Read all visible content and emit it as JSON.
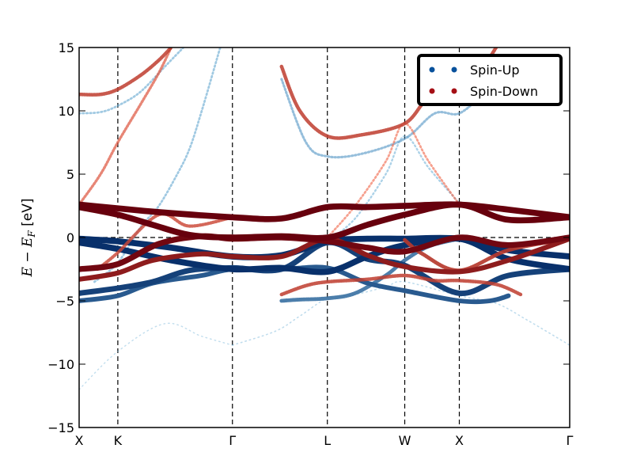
{
  "chart_data": {
    "type": "line",
    "ylabel": "E − E_F [eV]",
    "ylabel_parts": {
      "e": "E",
      "minus": " − ",
      "ef": "E",
      "sub": "F",
      "unit": " [eV]"
    },
    "ylim": [
      -15,
      15
    ],
    "yticks": [
      -15,
      -10,
      -5,
      0,
      5,
      10,
      15
    ],
    "ytick_labels": [
      "−15",
      "−10",
      "−5",
      "0",
      "5",
      "10",
      "15"
    ],
    "xlim": [
      0,
      8
    ],
    "kpoints": [
      {
        "label": "X",
        "x": 0
      },
      {
        "label": "K",
        "x": 0.631
      },
      {
        "label": "Γ",
        "x": 2.5
      },
      {
        "label": "L",
        "x": 4.048
      },
      {
        "label": "W",
        "x": 5.31
      },
      {
        "label": "X",
        "x": 6.2
      },
      {
        "label": "Γ",
        "x": 8.0
      }
    ],
    "fermi_level": 0,
    "legend": {
      "placement": "top-right",
      "entries": [
        {
          "name": "Spin-Up",
          "color": "#08519c"
        },
        {
          "name": "Spin-Down",
          "color": "#a50f15"
        }
      ]
    },
    "series": [
      {
        "name": "Spin-Up",
        "color_heavy": "#08306b",
        "color_light": "#6baed6",
        "bands": [
          {
            "points": [
              [
                0,
                -0.1
              ],
              [
                0.63,
                -0.3
              ],
              [
                1.5,
                -0.8
              ],
              [
                2.5,
                -1.5
              ],
              [
                3.3,
                -1.4
              ],
              [
                4.05,
                -0.3
              ],
              [
                4.7,
                -0.1
              ],
              [
                5.31,
                -0.1
              ],
              [
                6.2,
                -0.1
              ],
              [
                7.0,
                -1.0
              ],
              [
                8.0,
                -1.5
              ]
            ],
            "weight": 0.95
          },
          {
            "points": [
              [
                0,
                -0.4
              ],
              [
                0.63,
                -0.9
              ],
              [
                1.5,
                -1.8
              ],
              [
                2.5,
                -2.5
              ],
              [
                3.3,
                -2.4
              ],
              [
                4.05,
                -2.7
              ],
              [
                4.7,
                -1.5
              ],
              [
                5.31,
                -0.6
              ],
              [
                6.2,
                -0.1
              ],
              [
                7.0,
                -1.7
              ],
              [
                8.0,
                -2.5
              ]
            ],
            "weight": 0.95
          },
          {
            "points": [
              [
                0,
                -4.4
              ],
              [
                0.63,
                -4.0
              ],
              [
                1.2,
                -3.5
              ],
              [
                1.8,
                -2.6
              ],
              [
                2.5,
                -2.4
              ],
              [
                3.3,
                -2.5
              ],
              [
                4.05,
                -0.4
              ],
              [
                4.7,
                -1.7
              ],
              [
                5.31,
                -2.2
              ],
              [
                6.2,
                -4.4
              ],
              [
                7.0,
                -3.0
              ],
              [
                8.0,
                -2.5
              ]
            ],
            "weight": 0.85
          },
          {
            "points": [
              [
                0,
                -5.0
              ],
              [
                0.63,
                -4.6
              ],
              [
                1.2,
                -3.6
              ],
              [
                2.0,
                -3.0
              ],
              [
                2.5,
                -2.5
              ],
              [
                3.3,
                -2.5
              ],
              [
                4.05,
                -2.4
              ],
              [
                4.7,
                -3.6
              ],
              [
                5.31,
                -4.2
              ],
              [
                6.2,
                -5.0
              ],
              [
                6.7,
                -5.0
              ],
              [
                7.0,
                -4.6
              ]
            ],
            "weight": 0.7
          },
          {
            "points": [
              [
                0.25,
                -3.5
              ],
              [
                0.63,
                -2.0
              ],
              [
                1.0,
                0.8
              ],
              [
                1.3,
                2.5
              ],
              [
                1.6,
                5.0
              ],
              [
                1.8,
                7.0
              ],
              [
                2.0,
                10.0
              ],
              [
                2.3,
                15.0
              ]
            ],
            "weight": 0.25
          },
          {
            "points": [
              [
                0,
                9.8
              ],
              [
                0.35,
                9.9
              ],
              [
                0.63,
                10.4
              ],
              [
                1.0,
                11.5
              ],
              [
                1.4,
                13.5
              ],
              [
                1.7,
                15.0
              ]
            ],
            "weight": 0.25
          },
          {
            "points": [
              [
                3.3,
                -5.0
              ],
              [
                3.6,
                -4.9
              ],
              [
                4.05,
                -4.8
              ],
              [
                4.5,
                -4.4
              ],
              [
                5.0,
                -3.0
              ],
              [
                5.31,
                -1.8
              ],
              [
                5.7,
                -0.7
              ],
              [
                6.2,
                -0.1
              ]
            ],
            "weight": 0.55
          },
          {
            "points": [
              [
                4.05,
                -0.3
              ],
              [
                4.5,
                1.5
              ],
              [
                5.0,
                5.0
              ],
              [
                5.31,
                8.0
              ],
              [
                5.7,
                5.5
              ],
              [
                6.2,
                2.7
              ]
            ],
            "weight": 0.2
          },
          {
            "points": [
              [
                3.3,
                12.5
              ],
              [
                3.7,
                7.5
              ],
              [
                4.05,
                6.4
              ],
              [
                4.6,
                6.6
              ],
              [
                5.31,
                7.8
              ],
              [
                5.8,
                9.8
              ],
              [
                6.2,
                9.8
              ],
              [
                6.6,
                11.5
              ],
              [
                6.9,
                13.5
              ]
            ],
            "weight": 0.3
          },
          {
            "points": [
              [
                2.5,
                -8.5
              ],
              [
                3.2,
                -7.4
              ],
              [
                3.6,
                -6.2
              ],
              [
                4.05,
                -4.8
              ],
              [
                4.5,
                -4.5
              ],
              [
                5.0,
                -3.9
              ],
              [
                5.31,
                -3.5
              ],
              [
                6.2,
                -4.6
              ],
              [
                6.8,
                -5.2
              ],
              [
                7.3,
                -6.5
              ],
              [
                8.0,
                -8.5
              ]
            ],
            "weight": 0.08
          },
          {
            "points": [
              [
                0,
                -12.0
              ],
              [
                0.63,
                -9.0
              ],
              [
                1.4,
                -6.8
              ],
              [
                2.0,
                -7.8
              ],
              [
                2.5,
                -8.5
              ]
            ],
            "weight": 0.06
          }
        ]
      },
      {
        "name": "Spin-Down",
        "color_heavy": "#67000d",
        "color_light": "#fb6a4a",
        "bands": [
          {
            "points": [
              [
                0,
                2.6
              ],
              [
                0.63,
                2.3
              ],
              [
                1.3,
                2.0
              ],
              [
                2.5,
                1.6
              ],
              [
                3.3,
                1.5
              ],
              [
                4.05,
                2.4
              ],
              [
                4.7,
                2.4
              ],
              [
                5.31,
                2.5
              ],
              [
                6.2,
                2.6
              ],
              [
                7.0,
                2.2
              ],
              [
                8.0,
                1.6
              ]
            ],
            "weight": 0.95
          },
          {
            "points": [
              [
                0,
                2.4
              ],
              [
                0.63,
                1.8
              ],
              [
                1.2,
                1.0
              ],
              [
                1.8,
                0.2
              ],
              [
                2.5,
                0.0
              ],
              [
                3.3,
                0.1
              ],
              [
                4.05,
                0.0
              ],
              [
                4.7,
                1.0
              ],
              [
                5.31,
                1.8
              ],
              [
                6.2,
                2.6
              ],
              [
                7.0,
                1.4
              ],
              [
                8.0,
                1.6
              ]
            ],
            "weight": 0.95
          },
          {
            "points": [
              [
                0,
                -2.5
              ],
              [
                0.63,
                -2.1
              ],
              [
                1.3,
                -0.5
              ],
              [
                2.0,
                0.1
              ],
              [
                2.5,
                -0.1
              ],
              [
                3.3,
                0.0
              ],
              [
                4.05,
                -0.3
              ],
              [
                4.7,
                -0.8
              ],
              [
                5.31,
                -1.1
              ],
              [
                6.2,
                0.0
              ],
              [
                7.0,
                -0.6
              ],
              [
                8.0,
                0.0
              ]
            ],
            "weight": 0.9
          },
          {
            "points": [
              [
                0,
                -3.3
              ],
              [
                0.63,
                -2.8
              ],
              [
                1.2,
                -1.8
              ],
              [
                2.0,
                -1.3
              ],
              [
                2.5,
                -1.5
              ],
              [
                3.3,
                -1.5
              ],
              [
                4.05,
                -0.1
              ],
              [
                4.7,
                -1.4
              ],
              [
                5.31,
                -2.3
              ],
              [
                6.2,
                -2.7
              ],
              [
                7.0,
                -1.8
              ],
              [
                8.0,
                -0.1
              ]
            ],
            "weight": 0.75
          },
          {
            "points": [
              [
                0,
                11.3
              ],
              [
                0.35,
                11.3
              ],
              [
                0.63,
                11.7
              ],
              [
                1.0,
                12.8
              ],
              [
                1.3,
                14.0
              ],
              [
                1.5,
                15.0
              ]
            ],
            "weight": 0.5
          },
          {
            "points": [
              [
                0,
                2.6
              ],
              [
                0.35,
                5.0
              ],
              [
                0.63,
                7.5
              ],
              [
                1.0,
                10.5
              ],
              [
                1.3,
                13.0
              ],
              [
                1.5,
                15.0
              ]
            ],
            "weight": 0.35
          },
          {
            "points": [
              [
                3.3,
                13.5
              ],
              [
                3.6,
                10.0
              ],
              [
                4.05,
                8.0
              ],
              [
                4.6,
                8.1
              ],
              [
                5.31,
                9.0
              ],
              [
                5.7,
                11.0
              ],
              [
                6.2,
                11.4
              ],
              [
                6.5,
                12.8
              ],
              [
                6.8,
                15.0
              ]
            ],
            "weight": 0.5
          },
          {
            "points": [
              [
                4.05,
                0.0
              ],
              [
                4.5,
                2.5
              ],
              [
                5.0,
                6.0
              ],
              [
                5.31,
                9.0
              ],
              [
                5.7,
                6.0
              ],
              [
                6.2,
                2.6
              ]
            ],
            "weight": 0.25
          },
          {
            "points": [
              [
                3.3,
                -4.5
              ],
              [
                3.7,
                -3.8
              ],
              [
                4.05,
                -3.5
              ],
              [
                4.7,
                -3.3
              ],
              [
                5.31,
                -3.0
              ],
              [
                5.8,
                -3.4
              ],
              [
                6.2,
                -3.4
              ],
              [
                6.8,
                -3.7
              ],
              [
                7.2,
                -4.5
              ]
            ],
            "weight": 0.5
          },
          {
            "points": [
              [
                5.31,
                -0.2
              ],
              [
                5.6,
                -1.3
              ],
              [
                6.2,
                -2.6
              ],
              [
                7.0,
                -1.0
              ],
              [
                8.0,
                -0.1
              ]
            ],
            "weight": 0.55
          },
          {
            "points": [
              [
                0.3,
                -2.5
              ],
              [
                0.63,
                -1.2
              ],
              [
                1.3,
                1.8
              ],
              [
                1.8,
                0.9
              ],
              [
                2.5,
                1.6
              ]
            ],
            "weight": 0.45
          }
        ]
      }
    ]
  }
}
